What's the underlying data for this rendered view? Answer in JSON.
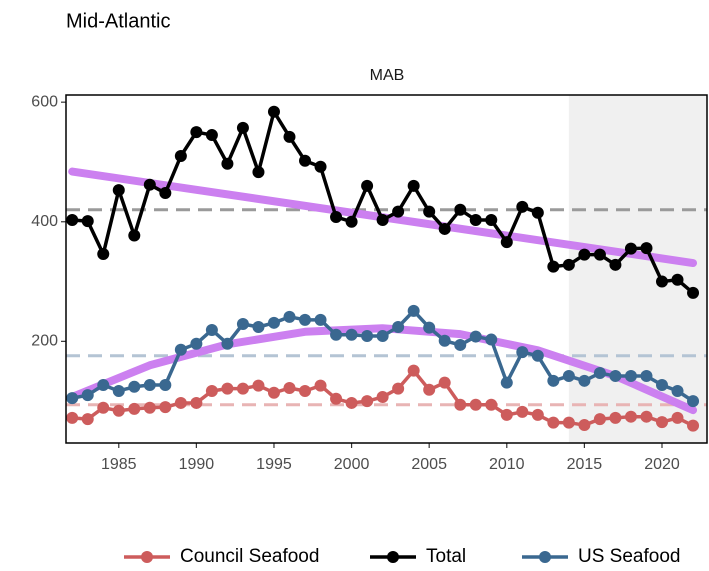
{
  "chart_data": {
    "type": "line",
    "title": "Mid-Atlantic",
    "panel_label": "MAB",
    "x": [
      1982,
      1983,
      1984,
      1985,
      1986,
      1987,
      1988,
      1989,
      1990,
      1991,
      1992,
      1993,
      1994,
      1995,
      1996,
      1997,
      1998,
      1999,
      2000,
      2001,
      2002,
      2003,
      2004,
      2005,
      2006,
      2007,
      2008,
      2009,
      2010,
      2011,
      2012,
      2013,
      2014,
      2015,
      2016,
      2017,
      2018,
      2019,
      2020,
      2021,
      2022
    ],
    "xlim": [
      1981.6,
      2022.9
    ],
    "xticks": [
      1985,
      1990,
      1995,
      2000,
      2005,
      2010,
      2015,
      2020
    ],
    "ylim": [
      30,
      612
    ],
    "yticks": [
      200,
      400,
      600
    ],
    "shade_from": 2014,
    "legend": "bottom",
    "series": [
      {
        "name": "Council Seafood",
        "color": "#cd5c5c",
        "mean": 94,
        "mean_color": "#e8b4b4",
        "values": [
          72,
          70,
          89,
          84,
          87,
          89,
          90,
          97,
          97,
          117,
          121,
          121,
          126,
          114,
          122,
          117,
          126,
          104,
          97,
          100,
          107,
          121,
          151,
          119,
          131,
          94,
          94,
          94,
          77,
          82,
          77,
          64,
          64,
          60,
          70,
          72,
          74,
          74,
          65,
          72,
          59
        ]
      },
      {
        "name": "Total",
        "color": "#000000",
        "mean": 420,
        "mean_color": "#9a9a9a",
        "values": [
          403,
          401,
          346,
          453,
          377,
          462,
          448,
          510,
          550,
          545,
          497,
          557,
          483,
          584,
          542,
          502,
          492,
          408,
          400,
          460,
          403,
          417,
          460,
          417,
          388,
          420,
          403,
          403,
          366,
          425,
          415,
          325,
          328,
          345,
          345,
          328,
          355,
          356,
          300,
          303,
          281
        ]
      },
      {
        "name": "US Seafood",
        "color": "#3a6890",
        "mean": 176,
        "mean_color": "#b4c4d4",
        "values": [
          105,
          110,
          127,
          117,
          124,
          127,
          127,
          186,
          196,
          219,
          196,
          229,
          224,
          231,
          241,
          236,
          236,
          211,
          211,
          209,
          209,
          224,
          251,
          223,
          201,
          194,
          208,
          203,
          131,
          182,
          176,
          134,
          142,
          134,
          147,
          142,
          142,
          142,
          127,
          117,
          100
        ]
      }
    ],
    "trend_color": "#cc80f0",
    "trends": [
      {
        "x": [
          1982,
          2022
        ],
        "values": [
          484,
          331
        ]
      },
      {
        "x": [
          1982,
          1987,
          1992,
          1997,
          2002,
          2007,
          2012,
          2017,
          2022
        ],
        "values": [
          107,
          160,
          195,
          216,
          222,
          212,
          185,
          142,
          85
        ]
      }
    ]
  }
}
